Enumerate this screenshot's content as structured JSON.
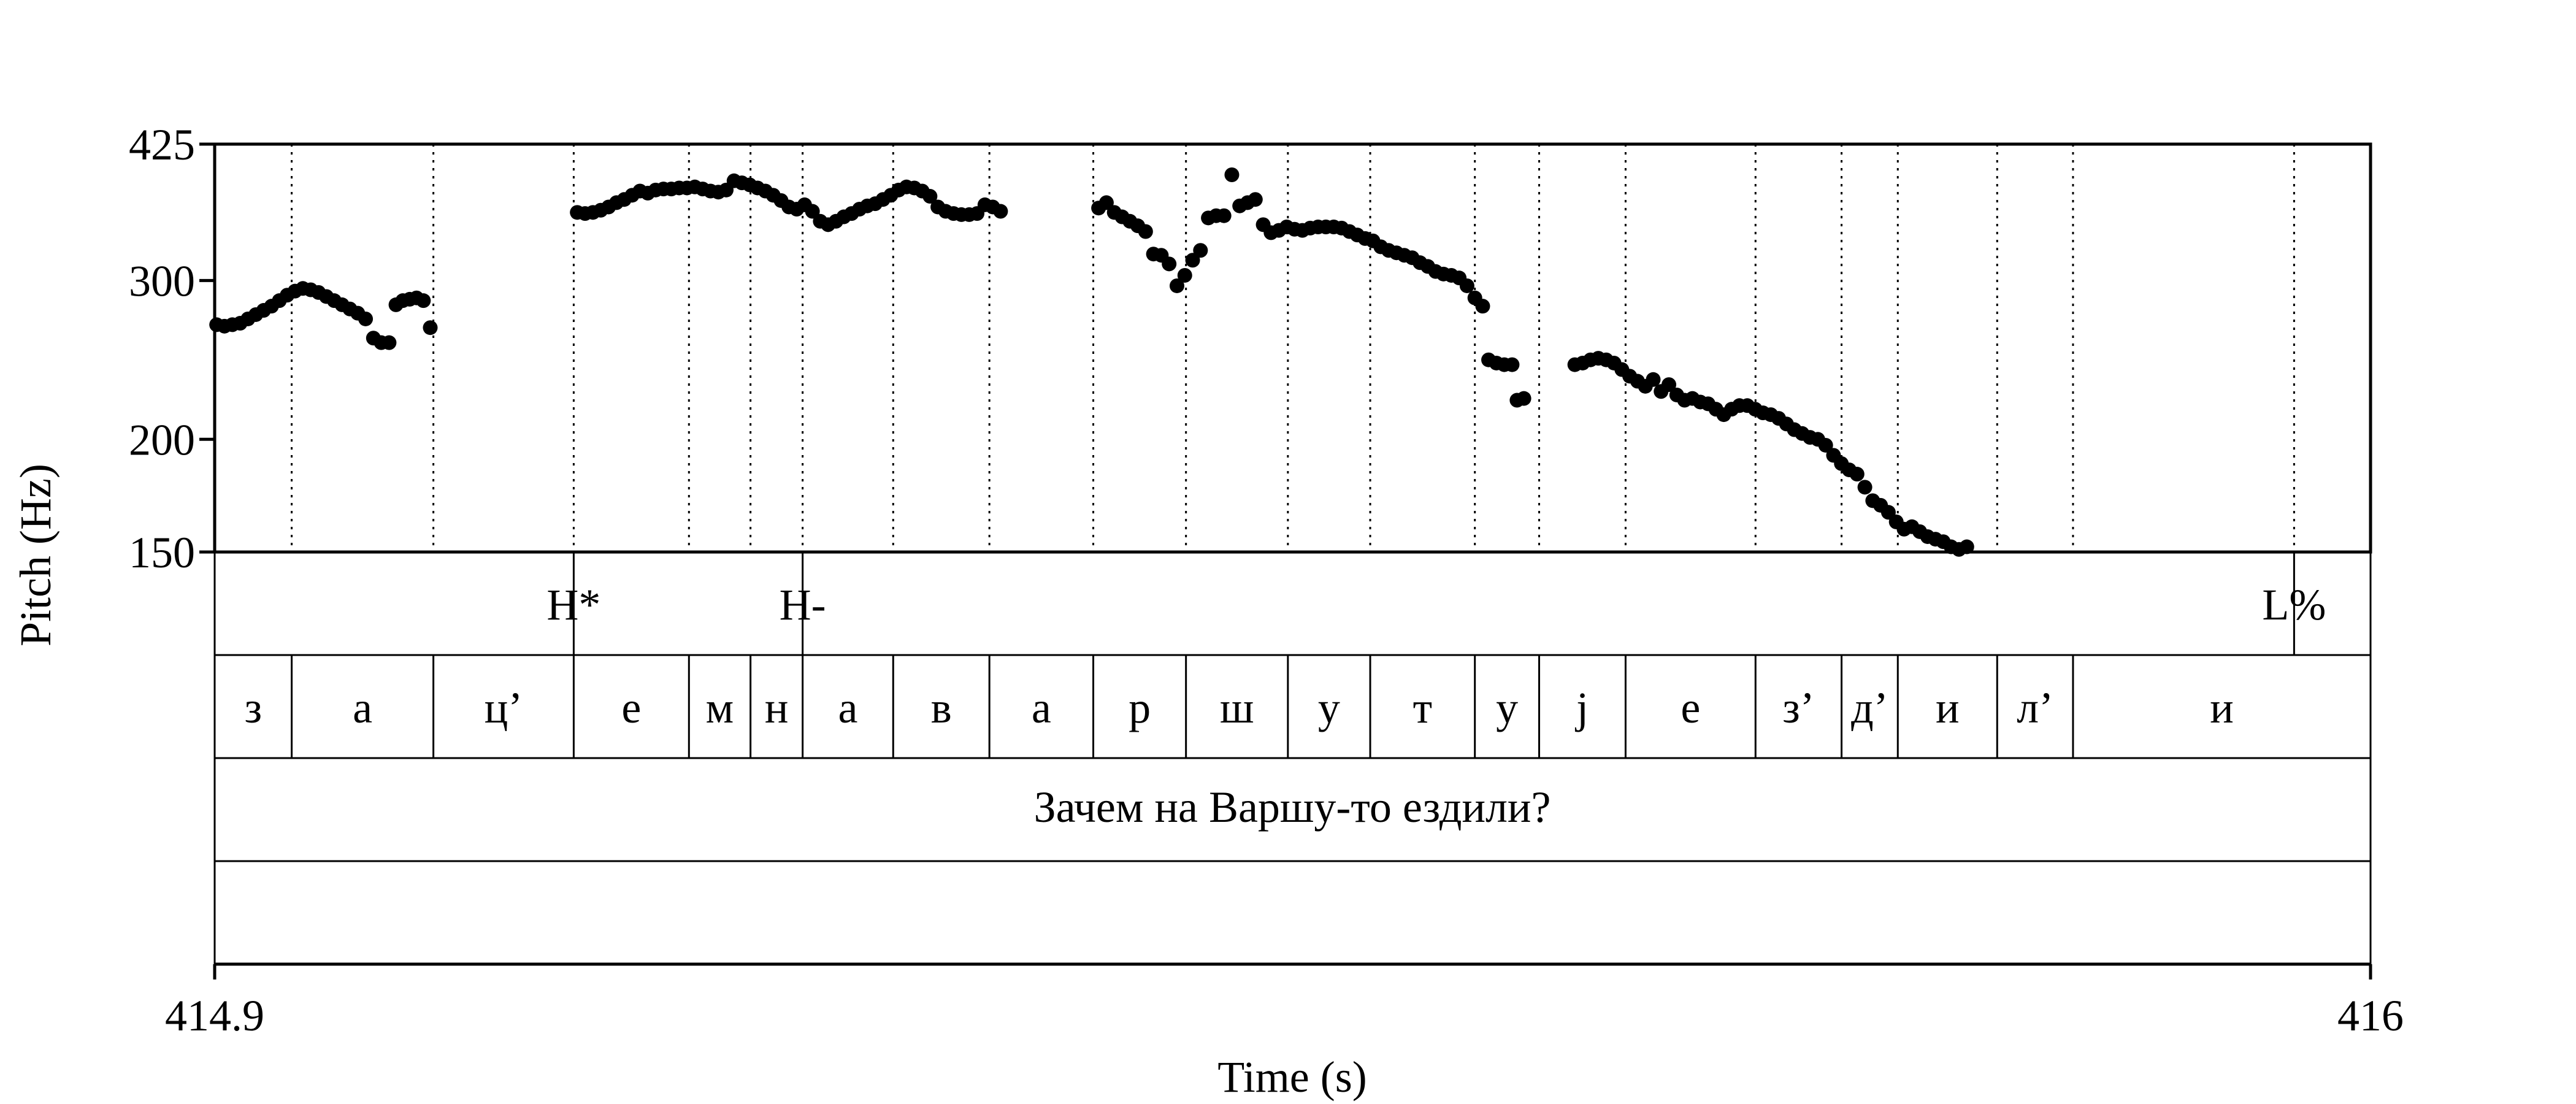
{
  "chart_data": {
    "type": "scatter",
    "title": "",
    "xlabel": "Time (s)",
    "ylabel": "Pitch (Hz)",
    "xlim": [
      414.9,
      416
    ],
    "ylim": [
      150,
      425
    ],
    "y_scale": "log",
    "grid": "vertical dotted lines at segment boundaries",
    "x_ticks": [
      "414.9",
      "416"
    ],
    "y_ticks": [
      {
        "label": "425",
        "value": 425
      },
      {
        "label": "300",
        "value": 300
      },
      {
        "label": "200",
        "value": 200
      },
      {
        "label": "150",
        "value": 150
      }
    ],
    "boundaries": [
      414.9393,
      415.0116,
      415.0832,
      415.142,
      415.1734,
      415.2,
      415.2462,
      415.2953,
      415.3483,
      415.3956,
      415.4476,
      415.4896,
      415.543,
      415.5758,
      415.6199,
      415.6862,
      415.7301,
      415.7588,
      415.8095,
      415.8482,
      415.961
    ],
    "tones": [
      {
        "label": "H*",
        "time": 415.0832
      },
      {
        "label": "H-",
        "time": 415.2
      },
      {
        "label": "L%",
        "time": 415.961
      }
    ],
    "segments": [
      {
        "label": "з",
        "start": 414.9,
        "end": 414.9393
      },
      {
        "label": "а",
        "start": 414.9393,
        "end": 415.0116
      },
      {
        "label": "ц’",
        "start": 415.0116,
        "end": 415.0832
      },
      {
        "label": "е",
        "start": 415.0832,
        "end": 415.142
      },
      {
        "label": "м",
        "start": 415.142,
        "end": 415.1734
      },
      {
        "label": "н",
        "start": 415.1734,
        "end": 415.2
      },
      {
        "label": "а",
        "start": 415.2,
        "end": 415.2462
      },
      {
        "label": "в",
        "start": 415.2462,
        "end": 415.2953
      },
      {
        "label": "а",
        "start": 415.2953,
        "end": 415.3483
      },
      {
        "label": "р",
        "start": 415.3483,
        "end": 415.3956
      },
      {
        "label": "ш",
        "start": 415.3956,
        "end": 415.4476
      },
      {
        "label": "у",
        "start": 415.4476,
        "end": 415.4896
      },
      {
        "label": "т",
        "start": 415.4896,
        "end": 415.543
      },
      {
        "label": "у",
        "start": 415.543,
        "end": 415.5758
      },
      {
        "label": "j",
        "start": 415.5758,
        "end": 415.6199
      },
      {
        "label": "е",
        "start": 415.6199,
        "end": 415.6862
      },
      {
        "label": "з’",
        "start": 415.6862,
        "end": 415.7301
      },
      {
        "label": "д’",
        "start": 415.7301,
        "end": 415.7588
      },
      {
        "label": "и",
        "start": 415.7588,
        "end": 415.8095
      },
      {
        "label": "л’",
        "start": 415.8095,
        "end": 415.8482
      },
      {
        "label": "и",
        "start": 415.8482,
        "end": 416
      }
    ],
    "sentence": "Зачем на Варшу-то ездили?",
    "series": [
      {
        "points": [
          [
            414.901,
            268
          ],
          [
            414.905,
            267
          ],
          [
            414.909,
            268
          ],
          [
            414.913,
            269
          ],
          [
            414.917,
            272
          ],
          [
            414.921,
            275
          ],
          [
            414.925,
            278
          ],
          [
            414.929,
            281
          ],
          [
            414.933,
            285
          ],
          [
            414.937,
            289
          ],
          [
            414.941,
            292
          ],
          [
            414.945,
            294
          ],
          [
            414.949,
            293
          ],
          [
            414.953,
            291
          ],
          [
            414.957,
            288
          ],
          [
            414.961,
            285
          ],
          [
            414.965,
            282
          ],
          [
            414.969,
            279
          ],
          [
            414.973,
            276
          ],
          [
            414.977,
            272
          ],
          [
            414.981,
            259
          ],
          [
            414.985,
            256
          ],
          [
            414.989,
            256
          ],
          [
            414.9925,
            282
          ],
          [
            414.996,
            285
          ],
          [
            414.9995,
            286
          ],
          [
            415.003,
            287
          ],
          [
            415.0065,
            285
          ],
          [
            415.01,
            266
          ],
          [
            415.085,
            357
          ],
          [
            415.089,
            356
          ],
          [
            415.093,
            357
          ],
          [
            415.097,
            359
          ],
          [
            415.101,
            362
          ],
          [
            415.105,
            366
          ],
          [
            415.109,
            369
          ],
          [
            415.113,
            373
          ],
          [
            415.117,
            377
          ],
          [
            415.121,
            375
          ],
          [
            415.125,
            378
          ],
          [
            415.129,
            379
          ],
          [
            415.133,
            379
          ],
          [
            415.137,
            380
          ],
          [
            415.141,
            380
          ],
          [
            415.145,
            381
          ],
          [
            415.149,
            379
          ],
          [
            415.153,
            377
          ],
          [
            415.157,
            376
          ],
          [
            415.161,
            378
          ],
          [
            415.165,
            387
          ],
          [
            415.169,
            385
          ],
          [
            415.173,
            383
          ],
          [
            415.177,
            380
          ],
          [
            415.181,
            377
          ],
          [
            415.185,
            373
          ],
          [
            415.189,
            368
          ],
          [
            415.193,
            362
          ],
          [
            415.197,
            360
          ],
          [
            415.201,
            364
          ],
          [
            415.205,
            358
          ],
          [
            415.209,
            349
          ],
          [
            415.213,
            346
          ],
          [
            415.217,
            349
          ],
          [
            415.221,
            353
          ],
          [
            415.225,
            356
          ],
          [
            415.229,
            360
          ],
          [
            415.233,
            363
          ],
          [
            415.237,
            365
          ],
          [
            415.241,
            369
          ],
          [
            415.245,
            373
          ],
          [
            415.249,
            378
          ],
          [
            415.253,
            381
          ],
          [
            415.257,
            380
          ],
          [
            415.261,
            377
          ],
          [
            415.265,
            372
          ],
          [
            415.269,
            362
          ],
          [
            415.273,
            358
          ],
          [
            415.277,
            356
          ],
          [
            415.281,
            355
          ],
          [
            415.285,
            355
          ],
          [
            415.289,
            356
          ],
          [
            415.293,
            364
          ],
          [
            415.297,
            362
          ],
          [
            415.301,
            358
          ],
          [
            415.351,
            361
          ],
          [
            415.355,
            366
          ],
          [
            415.359,
            357
          ],
          [
            415.363,
            353
          ],
          [
            415.367,
            349
          ],
          [
            415.371,
            345
          ],
          [
            415.375,
            340
          ],
          [
            415.379,
            321
          ],
          [
            415.383,
            320
          ],
          [
            415.387,
            313
          ],
          [
            415.391,
            296
          ],
          [
            415.395,
            304
          ],
          [
            415.399,
            316
          ],
          [
            415.403,
            324
          ],
          [
            415.407,
            352
          ],
          [
            415.411,
            354
          ],
          [
            415.415,
            354
          ],
          [
            415.419,
            393
          ],
          [
            415.423,
            363
          ],
          [
            415.427,
            366
          ],
          [
            415.431,
            369
          ],
          [
            415.435,
            346
          ],
          [
            415.439,
            339
          ],
          [
            415.443,
            341
          ],
          [
            415.447,
            344
          ],
          [
            415.451,
            342
          ],
          [
            415.455,
            341
          ],
          [
            415.459,
            343
          ],
          [
            415.463,
            344
          ],
          [
            415.467,
            344
          ],
          [
            415.471,
            344
          ],
          [
            415.475,
            343
          ],
          [
            415.479,
            340
          ],
          [
            415.483,
            337
          ],
          [
            415.487,
            334
          ],
          [
            415.491,
            332
          ],
          [
            415.495,
            327
          ],
          [
            415.499,
            324
          ],
          [
            415.503,
            322
          ],
          [
            415.507,
            320
          ],
          [
            415.511,
            318
          ],
          [
            415.515,
            314
          ],
          [
            415.519,
            311
          ],
          [
            415.523,
            307
          ],
          [
            415.527,
            305
          ],
          [
            415.531,
            304
          ],
          [
            415.535,
            302
          ],
          [
            415.539,
            296
          ],
          [
            415.543,
            287
          ],
          [
            415.547,
            281
          ],
          [
            415.55,
            245
          ],
          [
            415.554,
            243
          ],
          [
            415.558,
            242
          ],
          [
            415.562,
            242
          ],
          [
            415.5645,
            221
          ],
          [
            415.568,
            222
          ],
          [
            415.594,
            242
          ],
          [
            415.598,
            243
          ],
          [
            415.602,
            245
          ],
          [
            415.606,
            246
          ],
          [
            415.61,
            245
          ],
          [
            415.614,
            243
          ],
          [
            415.618,
            239
          ],
          [
            415.622,
            235
          ],
          [
            415.626,
            232
          ],
          [
            415.63,
            229
          ],
          [
            415.634,
            233
          ],
          [
            415.638,
            226
          ],
          [
            415.642,
            230
          ],
          [
            415.646,
            224
          ],
          [
            415.65,
            221
          ],
          [
            415.654,
            222
          ],
          [
            415.658,
            220
          ],
          [
            415.662,
            219
          ],
          [
            415.666,
            216
          ],
          [
            415.67,
            213
          ],
          [
            415.674,
            216
          ],
          [
            415.678,
            218
          ],
          [
            415.682,
            218
          ],
          [
            415.686,
            216
          ],
          [
            415.69,
            214
          ],
          [
            415.694,
            213
          ],
          [
            415.698,
            211
          ],
          [
            415.702,
            208
          ],
          [
            415.706,
            205
          ],
          [
            415.71,
            203
          ],
          [
            415.714,
            201
          ],
          [
            415.718,
            200
          ],
          [
            415.722,
            197
          ],
          [
            415.726,
            192
          ],
          [
            415.73,
            188
          ],
          [
            415.734,
            185
          ],
          [
            415.738,
            183
          ],
          [
            415.742,
            177
          ],
          [
            415.746,
            171
          ],
          [
            415.75,
            169
          ],
          [
            415.754,
            166
          ],
          [
            415.758,
            162
          ],
          [
            415.762,
            159
          ],
          [
            415.766,
            160
          ],
          [
            415.77,
            158
          ],
          [
            415.774,
            156
          ],
          [
            415.778,
            155
          ],
          [
            415.782,
            154
          ],
          [
            415.786,
            152
          ],
          [
            415.79,
            151
          ],
          [
            415.794,
            152
          ]
        ]
      }
    ]
  }
}
